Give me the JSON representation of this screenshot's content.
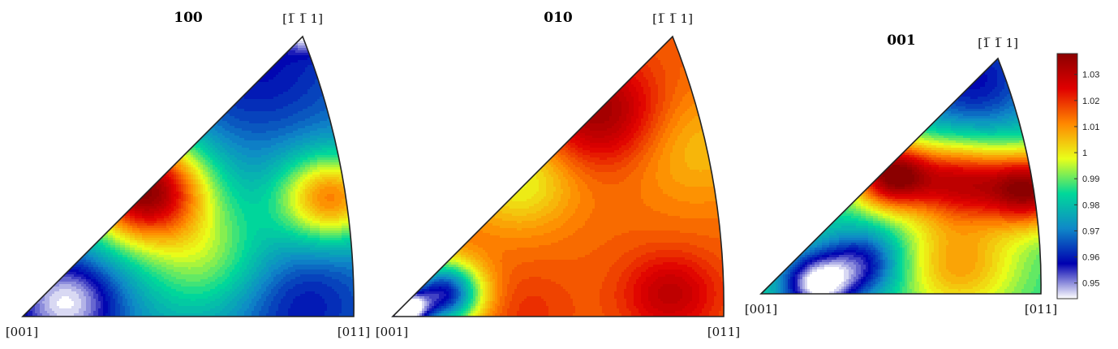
{
  "chart_data": [
    {
      "type": "heatmap",
      "title": "100",
      "corners": {
        "origin": "[001]",
        "right": "[011]",
        "top": "[1̅ 1̅ 1]"
      },
      "blobs": [
        {
          "u": 0.13,
          "v": 0.05,
          "value": 0.944,
          "spread": 0.11
        },
        {
          "u": 0.36,
          "v": 0.45,
          "value": 1.036,
          "spread": 0.13
        },
        {
          "u": 0.92,
          "v": 0.42,
          "value": 1.012,
          "spread": 0.11
        },
        {
          "u": 0.82,
          "v": 0.05,
          "value": 0.958,
          "spread": 0.15
        },
        {
          "u": 0.7,
          "v": 0.9,
          "value": 0.958,
          "spread": 0.2
        },
        {
          "u": 0.85,
          "v": 1.02,
          "value": 0.944,
          "spread": 0.05
        },
        {
          "u": 0.55,
          "v": 0.2,
          "value": 0.992,
          "spread": 0.15
        }
      ],
      "base": 0.972
    },
    {
      "type": "heatmap",
      "title": "010",
      "corners": {
        "origin": "[001]",
        "right": "[011]",
        "top": "[1̅ 1̅ 1]"
      },
      "blobs": [
        {
          "u": 0.03,
          "v": 0.02,
          "value": 0.944,
          "spread": 0.05
        },
        {
          "u": 0.15,
          "v": 0.08,
          "value": 0.958,
          "spread": 0.08
        },
        {
          "u": 0.62,
          "v": 0.72,
          "value": 1.036,
          "spread": 0.13
        },
        {
          "u": 0.83,
          "v": 0.08,
          "value": 1.03,
          "spread": 0.1
        },
        {
          "u": 0.4,
          "v": 0.02,
          "value": 1.02,
          "spread": 0.1
        },
        {
          "u": 0.38,
          "v": 0.48,
          "value": 0.998,
          "spread": 0.12
        },
        {
          "u": 0.9,
          "v": 0.6,
          "value": 1.005,
          "spread": 0.15
        }
      ],
      "base": 1.015
    },
    {
      "type": "heatmap",
      "title": "001",
      "corners": {
        "origin": "[001]",
        "right": "[011]",
        "top": "[1̅ 1̅ 1]"
      },
      "blobs": [
        {
          "u": 0.2,
          "v": 0.04,
          "value": 0.944,
          "spread": 0.09
        },
        {
          "u": 0.36,
          "v": 0.13,
          "value": 0.958,
          "spread": 0.1
        },
        {
          "u": 0.46,
          "v": 0.5,
          "value": 1.036,
          "spread": 0.1
        },
        {
          "u": 0.95,
          "v": 0.44,
          "value": 1.034,
          "spread": 0.11
        },
        {
          "u": 0.7,
          "v": 0.47,
          "value": 1.024,
          "spread": 0.12
        },
        {
          "u": 0.75,
          "v": 0.9,
          "value": 0.958,
          "spread": 0.18
        },
        {
          "u": 0.7,
          "v": 0.12,
          "value": 1.008,
          "spread": 0.15
        }
      ],
      "base": 0.985
    }
  ],
  "colorbar": {
    "min": 0.944,
    "max": 1.038,
    "ticks": [
      "0.95",
      "0.96",
      "0.97",
      "0.98",
      "0.99",
      "1",
      "1.01",
      "1.02",
      "1.03"
    ],
    "colormap": [
      "#ffffff",
      "#0000b0",
      "#0f88c8",
      "#00d89a",
      "#e9ff1a",
      "#ff8800",
      "#e00000",
      "#8b0000"
    ]
  }
}
